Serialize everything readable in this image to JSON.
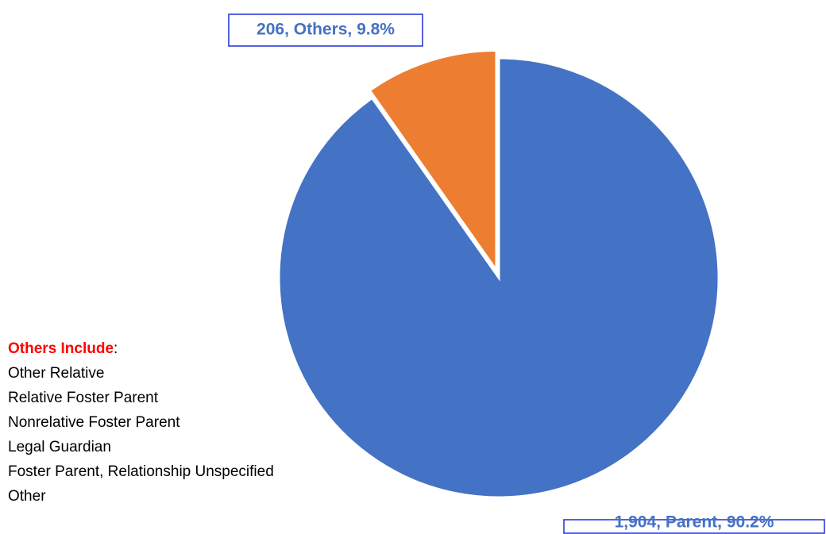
{
  "chart_data": {
    "type": "pie",
    "categories": [
      "Parent",
      "Others"
    ],
    "values": [
      1904,
      206
    ],
    "value_labels": [
      "1,904, Parent, 90.2%",
      "206, Others, 9.8%"
    ],
    "colors": [
      "#4472c4",
      "#ed7d31"
    ],
    "note": {
      "heading": "Others Include",
      "separator": ":",
      "items": [
        "Other Relative",
        "Relative Foster Parent",
        "Nonrelative Foster Parent",
        "Legal Guardian",
        "Foster Parent, Relationship Unspecified",
        "Other"
      ]
    }
  }
}
